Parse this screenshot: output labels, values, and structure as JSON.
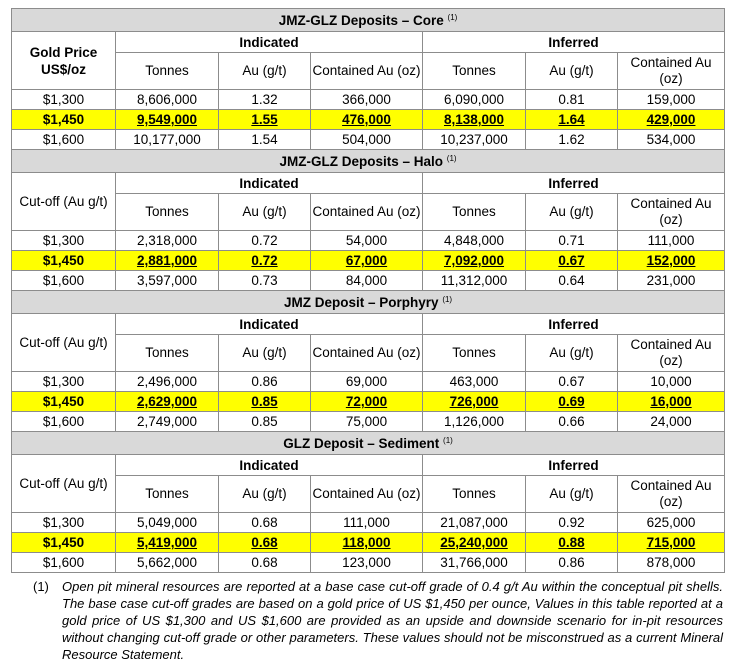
{
  "sections": [
    {
      "title": "JMZ-GLZ Deposits – Core",
      "note_ref": "(1)",
      "row_label": "Gold Price US$/oz",
      "row_label_bold": true,
      "indicated_label": "Indicated",
      "inferred_label": "Inferred",
      "cols": [
        "Tonnes",
        "Au (g/t)",
        "Contained Au (oz)",
        "Tonnes",
        "Au (g/t)",
        "Contained Au (oz)"
      ],
      "rows": [
        {
          "price": "$1,300",
          "cells": [
            "8,606,000",
            "1.32",
            "366,000",
            "6,090,000",
            "0.81",
            "159,000"
          ]
        },
        {
          "price": "$1,450",
          "cells": [
            "9,549,000",
            "1.55",
            "476,000",
            "8,138,000",
            "1.64",
            "429,000"
          ]
        },
        {
          "price": "$1,600",
          "cells": [
            "10,177,000",
            "1.54",
            "504,000",
            "10,237,000",
            "1.62",
            "534,000"
          ]
        }
      ]
    },
    {
      "title": "JMZ-GLZ Deposits – Halo",
      "note_ref": "(1)",
      "row_label": "Cut-off (Au g/t)",
      "row_label_bold": false,
      "indicated_label": "Indicated",
      "inferred_label": "Inferred",
      "cols": [
        "Tonnes",
        "Au (g/t)",
        "Contained Au (oz)",
        "Tonnes",
        "Au (g/t)",
        "Contained Au (oz)"
      ],
      "rows": [
        {
          "price": "$1,300",
          "cells": [
            "2,318,000",
            "0.72",
            "54,000",
            "4,848,000",
            "0.71",
            "111,000"
          ]
        },
        {
          "price": "$1,450",
          "cells": [
            "2,881,000",
            "0.72",
            "67,000",
            "7,092,000",
            "0.67",
            "152,000"
          ]
        },
        {
          "price": "$1,600",
          "cells": [
            "3,597,000",
            "0.73",
            "84,000",
            "11,312,000",
            "0.64",
            "231,000"
          ]
        }
      ]
    },
    {
      "title": "JMZ Deposit – Porphyry",
      "note_ref": "(1)",
      "row_label": "Cut-off (Au g/t)",
      "row_label_bold": false,
      "indicated_label": "Indicated",
      "inferred_label": "Inferred",
      "cols": [
        "Tonnes",
        "Au (g/t)",
        "Contained Au (oz)",
        "Tonnes",
        "Au (g/t)",
        "Contained Au (oz)"
      ],
      "rows": [
        {
          "price": "$1,300",
          "cells": [
            "2,496,000",
            "0.86",
            "69,000",
            "463,000",
            "0.67",
            "10,000"
          ]
        },
        {
          "price": "$1,450",
          "cells": [
            "2,629,000",
            "0.85",
            "72,000",
            "726,000",
            "0.69",
            "16,000"
          ]
        },
        {
          "price": "$1,600",
          "cells": [
            "2,749,000",
            "0.85",
            "75,000",
            "1,126,000",
            "0.66",
            "24,000"
          ]
        }
      ]
    },
    {
      "title": "GLZ Deposit – Sediment",
      "note_ref": "(1)",
      "row_label": "Cut-off (Au g/t)",
      "row_label_bold": false,
      "indicated_label": "Indicated",
      "inferred_label": "Inferred",
      "cols": [
        "Tonnes",
        "Au (g/t)",
        "Contained Au (oz)",
        "Tonnes",
        "Au (g/t)",
        "Contained Au (oz)"
      ],
      "rows": [
        {
          "price": "$1,300",
          "cells": [
            "5,049,000",
            "0.68",
            "111,000",
            "21,087,000",
            "0.92",
            "625,000"
          ]
        },
        {
          "price": "$1,450",
          "cells": [
            "5,419,000",
            "0.68",
            "118,000",
            "25,240,000",
            "0.88",
            "715,000"
          ]
        },
        {
          "price": "$1,600",
          "cells": [
            "5,662,000",
            "0.68",
            "123,000",
            "31,766,000",
            "0.86",
            "878,000"
          ]
        }
      ]
    }
  ],
  "highlight_row_index": 1,
  "highlight_color": "#ffff00",
  "header_fill": "#d9d9d9",
  "footnote": {
    "number": "(1)",
    "text": "Open pit mineral resources are reported at a base case cut-off grade of 0.4 g/t Au within the conceptual pit shells. The base case cut-off grades are based on a gold price of US $1,450 per ounce, Values in this table reported at a gold price of US $1,300 and US $1,600 are provided as an upside and downside scenario for in-pit resources without changing cut-off grade or other parameters. These values should not be misconstrued as a current Mineral Resource Statement."
  }
}
